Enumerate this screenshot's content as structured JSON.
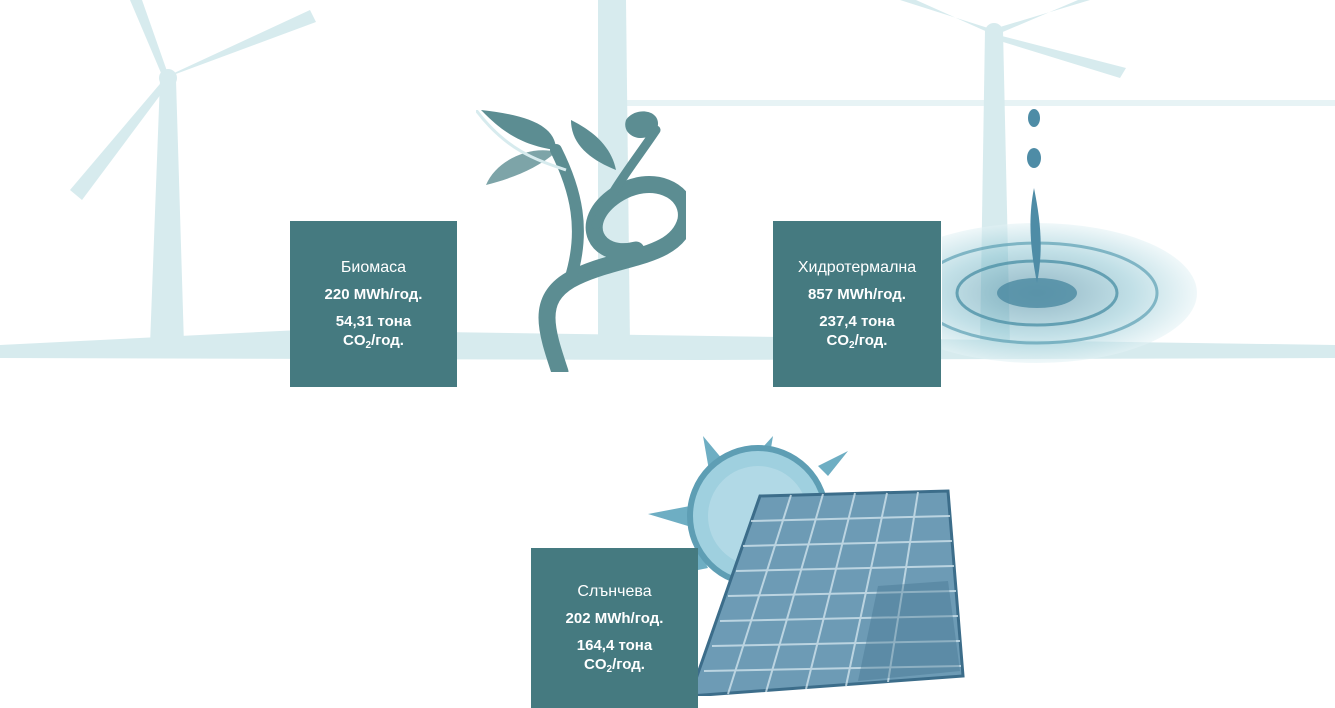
{
  "colors": {
    "card_bg": "#457a80",
    "wind_watermark": "#d7ebee",
    "plant": "#5c8d92",
    "water": "#7fb9c6",
    "sun": "#6eaec3",
    "panel": "#3e6d88"
  },
  "background": {
    "icon": "wind-turbine-watermark"
  },
  "cards": [
    {
      "id": "biomass",
      "icon": "plant-sprout-icon",
      "name": "Биомаса",
      "energy": "220 MWh/год.",
      "co2_amount": "54,31 тона",
      "co2_prefix": "CO",
      "co2_sub": "2",
      "co2_suffix": "/год."
    },
    {
      "id": "hydro",
      "icon": "water-drop-icon",
      "name": "Хидротермална",
      "energy": "857 MWh/год.",
      "co2_amount": "237,4 тона",
      "co2_prefix": "CO",
      "co2_sub": "2",
      "co2_suffix": "/год."
    },
    {
      "id": "solar",
      "icon": "solar-panel-icon",
      "name": "Слънчева",
      "energy": "202 MWh/год.",
      "co2_amount": "164,4 тона",
      "co2_prefix": "CO",
      "co2_sub": "2",
      "co2_suffix": "/год."
    }
  ]
}
